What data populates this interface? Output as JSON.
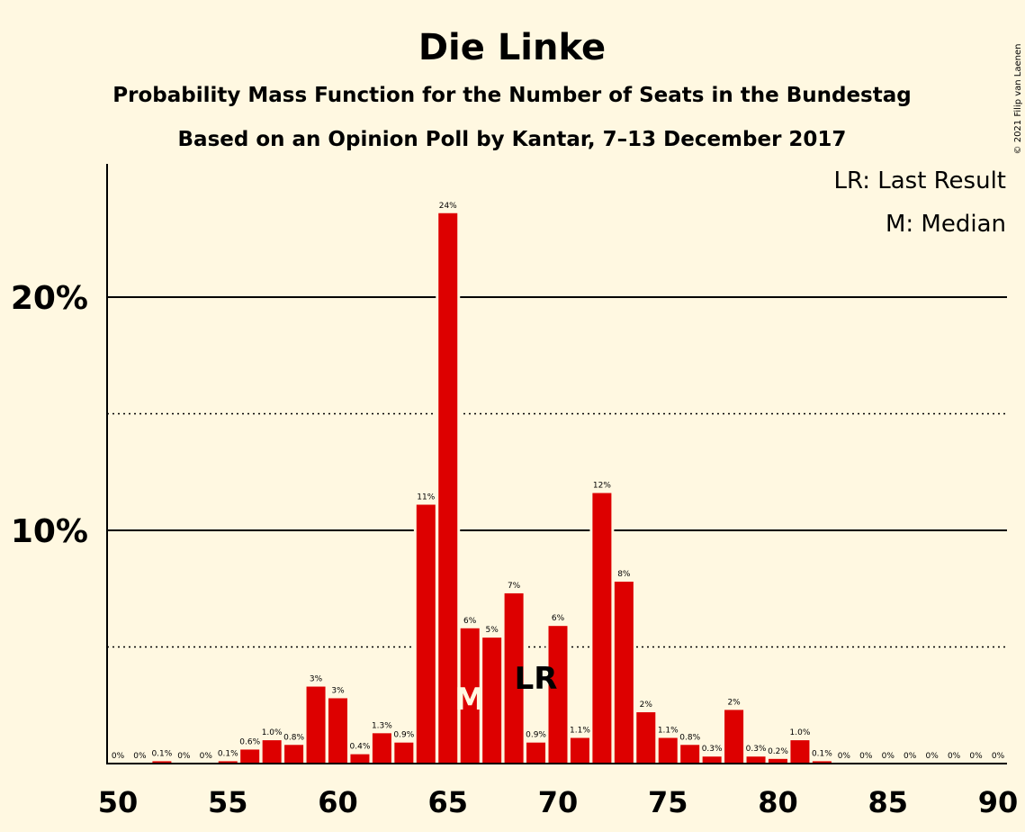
{
  "title": "Die Linke",
  "subtitle1": "Probability Mass Function for the Number of Seats in the Bundestag",
  "subtitle2": "Based on an Opinion Poll by Kantar, 7–13 December 2017",
  "copyright": "© 2021 Filip van Laenen",
  "legend": {
    "last_result": "LR: Last Result",
    "median": "M: Median"
  },
  "colors": {
    "bar": "#dd0000",
    "background": "#fff8e1",
    "axis": "#000000",
    "median_text": "#fff8e1"
  },
  "chart_data": {
    "type": "bar",
    "title": "Die Linke",
    "xlabel": "",
    "ylabel": "",
    "x": [
      50,
      51,
      52,
      53,
      54,
      55,
      56,
      57,
      58,
      59,
      60,
      61,
      62,
      63,
      64,
      65,
      66,
      67,
      68,
      69,
      70,
      71,
      72,
      73,
      74,
      75,
      76,
      77,
      78,
      79,
      80,
      81,
      82,
      83,
      84,
      85,
      86,
      87,
      88,
      89,
      90
    ],
    "values": [
      0,
      0,
      0.1,
      0,
      0,
      0.1,
      0.6,
      1.0,
      0.8,
      3.3,
      2.8,
      0.4,
      1.3,
      0.9,
      11.1,
      23.6,
      5.8,
      5.4,
      7.3,
      0.9,
      5.9,
      1.1,
      11.6,
      7.8,
      2.2,
      1.1,
      0.8,
      0.3,
      2.3,
      0.3,
      0.2,
      1.0,
      0.1,
      0,
      0,
      0,
      0,
      0,
      0,
      0,
      0
    ],
    "labels": [
      "0%",
      "0%",
      "0.1%",
      "0%",
      "0%",
      "0.1%",
      "0.6%",
      "1.0%",
      "0.8%",
      "3%",
      "3%",
      "0.4%",
      "1.3%",
      "0.9%",
      "11%",
      "24%",
      "6%",
      "5%",
      "7%",
      "0.9%",
      "6%",
      "1.1%",
      "12%",
      "8%",
      "2%",
      "1.1%",
      "0.8%",
      "0.3%",
      "2%",
      "0.3%",
      "0.2%",
      "1.0%",
      "0.1%",
      "0%",
      "0%",
      "0%",
      "0%",
      "0%",
      "0%",
      "0%",
      "0%"
    ],
    "xticks": [
      50,
      55,
      60,
      65,
      70,
      75,
      80,
      85,
      90
    ],
    "xtick_labels": [
      "50",
      "55",
      "60",
      "65",
      "70",
      "75",
      "80",
      "85",
      "90"
    ],
    "yticks": [
      10,
      20
    ],
    "ytick_labels": [
      "10%",
      "20%"
    ],
    "ylim": [
      0,
      25.6
    ],
    "solid_gridlines": [
      10,
      20
    ],
    "dotted_gridlines": [
      5,
      15
    ],
    "median": {
      "seat": 66,
      "label": "M"
    },
    "last_result": {
      "seat": 69,
      "label": "LR"
    },
    "legend_position": "top-right"
  }
}
